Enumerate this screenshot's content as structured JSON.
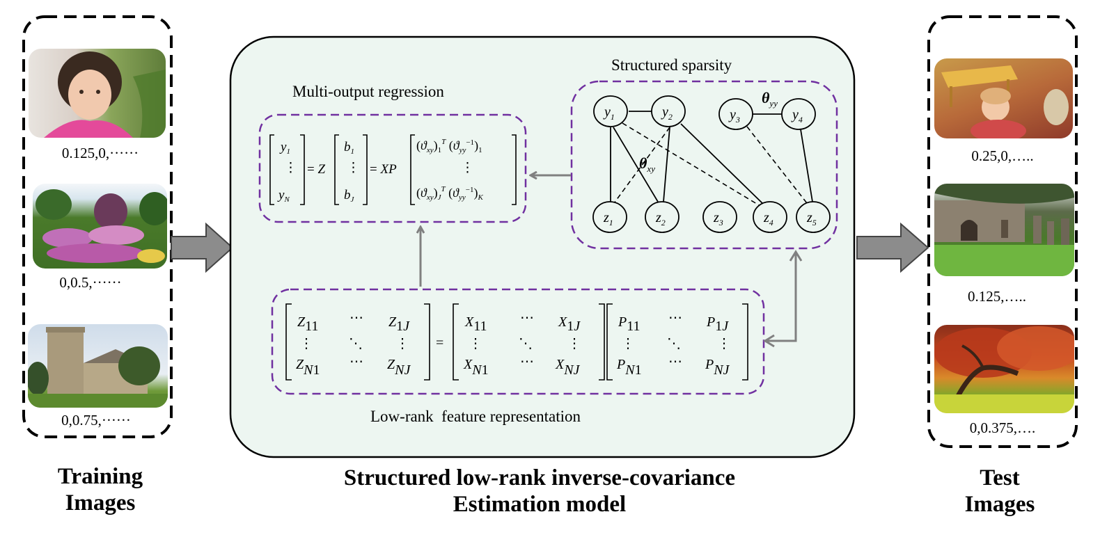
{
  "training": {
    "title_line1": "Training",
    "title_line2": "Images",
    "images": [
      {
        "label": "0.125,0,······",
        "icon": "child-portrait-photo"
      },
      {
        "label": "0,0.5,······",
        "icon": "garden-photo"
      },
      {
        "label": "0,0.75,······",
        "icon": "church-photo"
      }
    ]
  },
  "test": {
    "title_line1": "Test",
    "title_line2": "Images",
    "images": [
      {
        "label": "0.25,0,…..",
        "icon": "playroom-child-photo"
      },
      {
        "label": "0.125,…..",
        "icon": "churchyard-photo"
      },
      {
        "label": "0,0.375,….",
        "icon": "autumn-tree-photo"
      }
    ]
  },
  "model": {
    "title_line1": "Structured low-rank inverse-covariance",
    "title_line2": "Estimation model",
    "multi_output_label": "Multi-output regression",
    "sparsity_label": "Structured sparsity",
    "lowrank_label": "Low-rank  feature representation"
  },
  "graph": {
    "y_nodes": [
      "1",
      "2",
      "3",
      "4"
    ],
    "z_nodes": [
      "1",
      "2",
      "3",
      "4",
      "5"
    ],
    "theta_xy_sub": "xy",
    "theta_yy_sub": "yy"
  },
  "colors": {
    "panel_fill": "#edf6f1",
    "dash_purple": "#7030a0",
    "arrow_gray": "#808080"
  }
}
